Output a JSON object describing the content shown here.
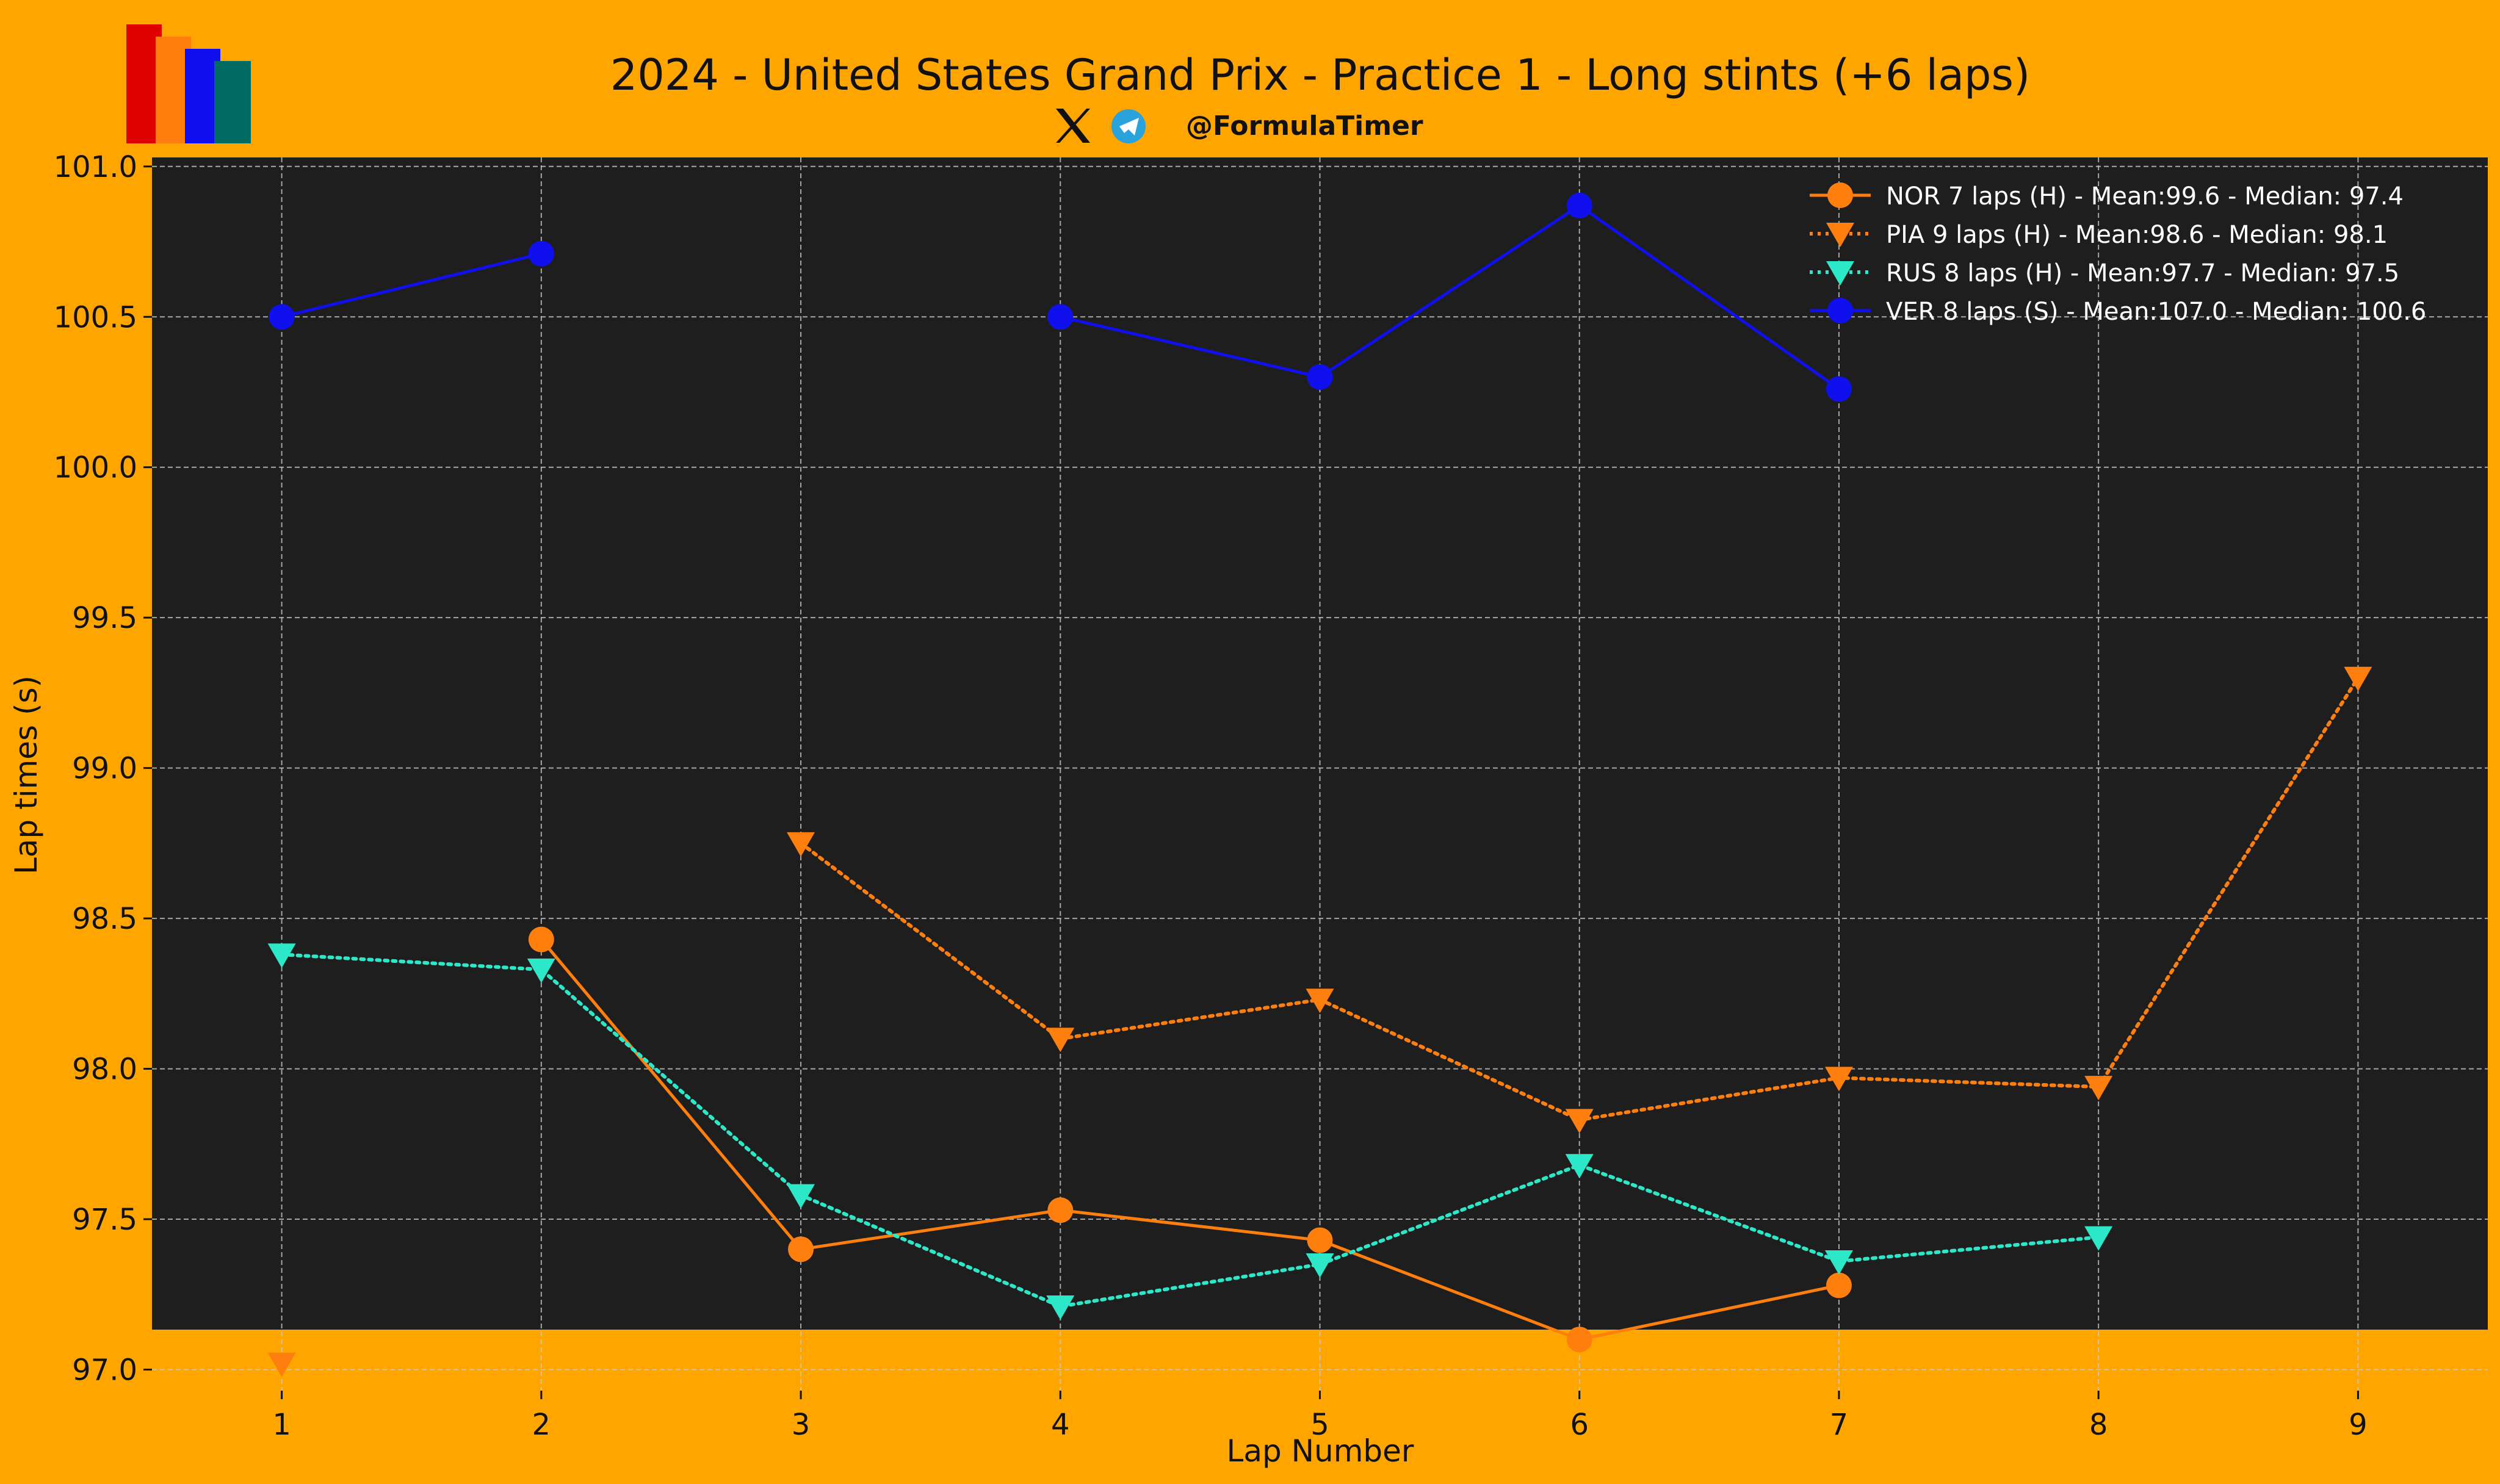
{
  "header": {
    "title": "2024 - United States Grand Prix - Practice 1 - Long stints (+6 laps)",
    "handle": "@FormulaTimer",
    "logo_colors": [
      "#e00000",
      "#ff7f0e",
      "#1010ee",
      "#006b63"
    ],
    "social_icons": [
      "x-icon",
      "telegram-icon"
    ]
  },
  "chart_data": {
    "type": "line",
    "title": "2024 - United States Grand Prix - Practice 1 - Long stints (+6 laps)",
    "xlabel": "Lap Number",
    "ylabel": "Lap times (s)",
    "xlim": [
      0.5,
      9.5
    ],
    "ylim": [
      96.93,
      101.03
    ],
    "x_ticks": [
      1,
      2,
      3,
      4,
      5,
      6,
      7,
      8,
      9
    ],
    "y_ticks": [
      97.0,
      97.5,
      98.0,
      98.5,
      99.0,
      99.5,
      100.0,
      100.5,
      101.0
    ],
    "y_tick_labels": [
      "97.0",
      "97.5",
      "98.0",
      "98.5",
      "99.0",
      "99.5",
      "100.0",
      "100.5",
      "101.0"
    ],
    "grid": true,
    "plot_background": "#1e1e1e",
    "legend_position": "top-right",
    "series": [
      {
        "name": "NOR 7 laps (H) - Mean:99.6 - Median: 97.4",
        "color": "#ff7f0e",
        "marker": "circle",
        "linestyle": "solid",
        "x": [
          2,
          3,
          4,
          5,
          6,
          7
        ],
        "values": [
          98.43,
          97.4,
          97.53,
          97.43,
          97.1,
          97.28
        ]
      },
      {
        "name": "PIA 9 laps (H) - Mean:98.6 - Median: 98.1",
        "color": "#ff7f0e",
        "marker": "triangle-down",
        "linestyle": "dotted",
        "x": [
          1,
          3,
          4,
          5,
          6,
          7,
          8,
          9
        ],
        "values": [
          97.02,
          98.75,
          98.1,
          98.23,
          97.83,
          97.97,
          97.94,
          99.3
        ],
        "connect_from_index": 1
      },
      {
        "name": "RUS 8 laps (H) - Mean:97.7 - Median: 97.5",
        "color": "#2de8c8",
        "marker": "triangle-down",
        "linestyle": "dotted",
        "x": [
          1,
          2,
          3,
          4,
          5,
          6,
          7,
          8
        ],
        "values": [
          98.38,
          98.33,
          97.58,
          97.21,
          97.35,
          97.68,
          97.36,
          97.44
        ]
      },
      {
        "name": "VER 8 laps (S) - Mean:107.0 - Median: 100.6",
        "color": "#1010ee",
        "marker": "circle",
        "linestyle": "solid",
        "x": [
          1,
          2,
          4,
          5,
          6,
          7
        ],
        "values": [
          100.5,
          100.71,
          100.5,
          100.3,
          100.87,
          100.26
        ],
        "segments": [
          [
            0,
            1
          ],
          [
            2,
            5
          ]
        ]
      }
    ]
  }
}
